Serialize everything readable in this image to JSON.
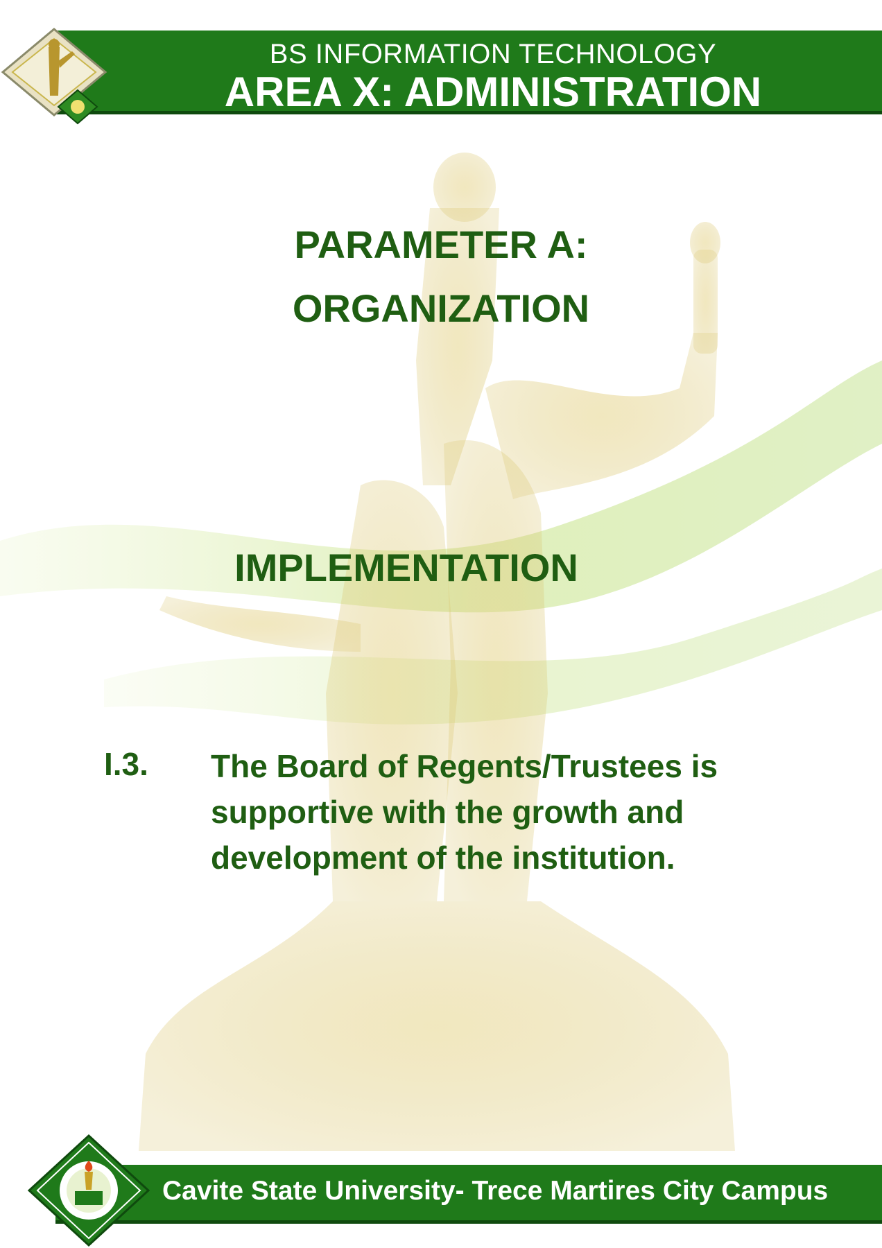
{
  "header": {
    "program": "BS INFORMATION TECHNOLOGY",
    "area": "AREA X: ADMINISTRATION"
  },
  "main": {
    "parameter_line1": "PARAMETER A:",
    "parameter_line2": "ORGANIZATION",
    "section": "IMPLEMENTATION",
    "indicator": {
      "code": "I.3.",
      "text": "The Board of Regents/Trustees is supportive with the growth and development of the institution."
    }
  },
  "footer": {
    "campus": "Cavite State University- Trece Martires City Campus"
  },
  "colors": {
    "bar_green": "#1f7a1a",
    "text_green": "#1f5e12",
    "watermark_gold": "#d8c36a",
    "wave_green": "#b9dd6a"
  },
  "icons": {
    "header_logo": "monument-logo",
    "footer_seal": "university-seal"
  }
}
